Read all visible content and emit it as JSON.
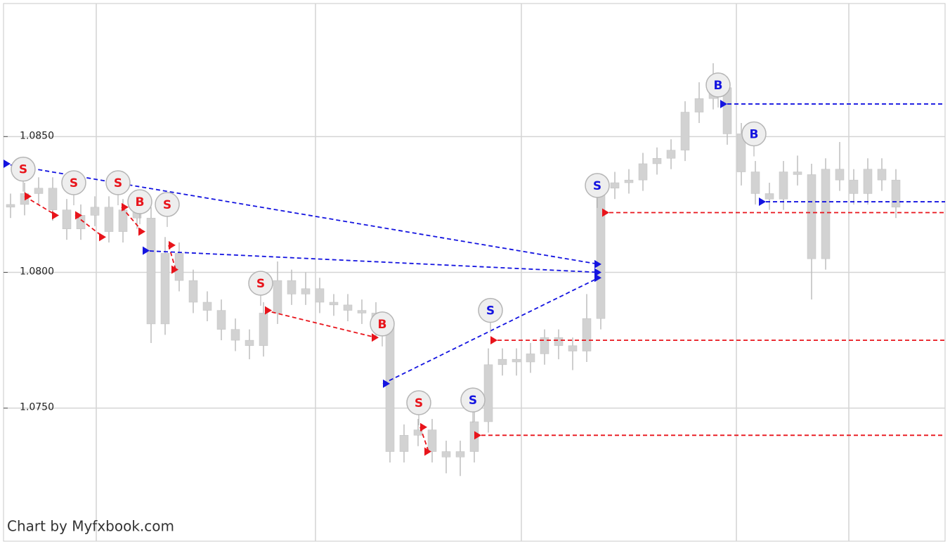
{
  "chart_data": {
    "type": "candlestick",
    "watermark": "Chart by Myfxbook.com",
    "xlim": [
      0,
      67
    ],
    "ylim": [
      1.0701,
      1.0899
    ],
    "yticks": [
      {
        "value": 1.085,
        "label": "1.0850"
      },
      {
        "value": 1.08,
        "label": "1.0800"
      },
      {
        "value": 1.075,
        "label": "1.0750"
      }
    ],
    "xgrid": [
      6.6,
      22.2,
      36.85,
      52.15,
      60.15
    ],
    "grid": true,
    "candle_color": "#d2d2d2",
    "open": [
      1.0824,
      1.0825,
      1.0829,
      1.0831,
      1.0823,
      1.0816,
      1.0821,
      1.0824,
      1.0815,
      1.0823,
      1.082,
      1.0781,
      1.0807,
      1.0797,
      1.0789,
      1.0786,
      1.0779,
      1.0775,
      1.0773,
      1.0785,
      1.0797,
      1.0792,
      1.0794,
      1.0789,
      1.0788,
      1.0786,
      1.0785,
      1.078,
      1.0734,
      1.074,
      1.0742,
      1.0734,
      1.0732,
      1.0734,
      1.0745,
      1.0766,
      1.0768,
      1.0767,
      1.077,
      1.0776,
      1.0773,
      1.0771,
      1.0783,
      1.0831,
      1.0833,
      1.0834,
      1.084,
      1.0842,
      1.0845,
      1.0859,
      1.0864,
      1.0868,
      1.0851,
      1.0837,
      1.0829,
      1.0827,
      1.0837,
      1.0836,
      1.0805,
      1.0838,
      1.0834,
      1.0829,
      1.0838,
      1.0834
    ],
    "high": [
      1.0829,
      1.0833,
      1.0835,
      1.0835,
      1.0827,
      1.0825,
      1.0828,
      1.0828,
      1.0827,
      1.0827,
      1.0824,
      1.0813,
      1.0811,
      1.0801,
      1.0793,
      1.079,
      1.0783,
      1.0779,
      1.0789,
      1.0804,
      1.0801,
      1.08,
      1.0798,
      1.0792,
      1.0792,
      1.079,
      1.0789,
      1.0784,
      1.0744,
      1.0746,
      1.0746,
      1.0738,
      1.0738,
      1.0749,
      1.0772,
      1.0772,
      1.0772,
      1.0774,
      1.0779,
      1.0779,
      1.0776,
      1.0792,
      1.0835,
      1.0837,
      1.0838,
      1.0844,
      1.0846,
      1.0849,
      1.0863,
      1.087,
      1.0877,
      1.0872,
      1.0855,
      1.0841,
      1.0833,
      1.0841,
      1.0843,
      1.084,
      1.0842,
      1.0848,
      1.0838,
      1.0842,
      1.0842,
      1.0838
    ],
    "low": [
      1.082,
      1.0821,
      1.0825,
      1.0819,
      1.0812,
      1.0812,
      1.0817,
      1.0811,
      1.0811,
      1.0816,
      1.0774,
      1.0777,
      1.0793,
      1.0785,
      1.0782,
      1.0775,
      1.0771,
      1.0768,
      1.0769,
      1.0781,
      1.0788,
      1.0788,
      1.0785,
      1.0784,
      1.0782,
      1.0781,
      1.0776,
      1.073,
      1.073,
      1.0736,
      1.073,
      1.0726,
      1.0725,
      1.073,
      1.0741,
      1.0762,
      1.0762,
      1.0763,
      1.0766,
      1.0768,
      1.0764,
      1.0767,
      1.0779,
      1.0827,
      1.0829,
      1.083,
      1.0836,
      1.0838,
      1.0841,
      1.0855,
      1.086,
      1.0847,
      1.0832,
      1.0825,
      1.0823,
      1.0823,
      1.0832,
      1.079,
      1.0801,
      1.083,
      1.0825,
      1.0825,
      1.083,
      1.082
    ],
    "close": [
      1.0825,
      1.0829,
      1.0831,
      1.0823,
      1.0816,
      1.0821,
      1.0824,
      1.0815,
      1.0823,
      1.082,
      1.0781,
      1.0807,
      1.0797,
      1.0789,
      1.0786,
      1.0779,
      1.0775,
      1.0773,
      1.0785,
      1.0797,
      1.0792,
      1.0794,
      1.0789,
      1.0788,
      1.0786,
      1.0785,
      1.078,
      1.0734,
      1.074,
      1.0742,
      1.0734,
      1.0732,
      1.0734,
      1.0745,
      1.0766,
      1.0768,
      1.0767,
      1.077,
      1.0776,
      1.0773,
      1.0771,
      1.0783,
      1.0831,
      1.0833,
      1.0834,
      1.084,
      1.0842,
      1.0845,
      1.0859,
      1.0864,
      1.0868,
      1.0851,
      1.0837,
      1.0829,
      1.0827,
      1.0837,
      1.0836,
      1.0805,
      1.0838,
      1.0834,
      1.0829,
      1.0838,
      1.0834,
      1.0824
    ],
    "lines": [
      {
        "color": "#e8141b",
        "from": [
          1.5,
          1.0828
        ],
        "to": [
          3.75,
          1.0821
        ]
      },
      {
        "color": "#e8141b",
        "from": [
          5.1,
          1.0821
        ],
        "to": [
          7.1,
          1.0813
        ]
      },
      {
        "color": "#e8141b",
        "from": [
          8.4,
          1.0824
        ],
        "to": [
          9.9,
          1.0815
        ]
      },
      {
        "color": "#e8141b",
        "from": [
          11.75,
          1.081
        ],
        "to": [
          12.25,
          1.0801
        ]
      },
      {
        "color": "#e8141b",
        "from": [
          18.6,
          1.0786
        ],
        "to": [
          26.5,
          1.0776
        ]
      },
      {
        "color": "#e8141b",
        "from": [
          29.65,
          1.0743
        ],
        "to": [
          30.25,
          1.0734
        ]
      },
      {
        "color": "#e8141b",
        "from": [
          33.5,
          1.074
        ],
        "to": [
          67,
          1.074
        ]
      },
      {
        "color": "#e8141b",
        "from": [
          34.65,
          1.0775
        ],
        "to": [
          67,
          1.0775
        ]
      },
      {
        "color": "#e8141b",
        "from": [
          42.6,
          1.0822
        ],
        "to": [
          67,
          1.0822
        ]
      },
      {
        "color": "#1414e0",
        "from": [
          0,
          1.084
        ],
        "to": [
          42.35,
          1.0803
        ]
      },
      {
        "color": "#1414e0",
        "from": [
          9.9,
          1.0808
        ],
        "to": [
          42.35,
          1.08
        ]
      },
      {
        "color": "#1414e0",
        "from": [
          27,
          1.0759
        ],
        "to": [
          42.35,
          1.0798
        ]
      },
      {
        "color": "#1414e0",
        "from": [
          51,
          1.0862
        ],
        "to": [
          67,
          1.0862
        ]
      },
      {
        "color": "#1414e0",
        "from": [
          53.75,
          1.0826
        ],
        "to": [
          67,
          1.0826
        ]
      }
    ],
    "markers": [
      {
        "label": "S",
        "color": "#e8141b",
        "x": 1.4,
        "price": 1.0838
      },
      {
        "label": "S",
        "color": "#e8141b",
        "x": 5,
        "price": 1.0833
      },
      {
        "label": "S",
        "color": "#e8141b",
        "x": 8.15,
        "price": 1.0833
      },
      {
        "label": "B",
        "color": "#e8141b",
        "x": 9.7,
        "price": 1.0826
      },
      {
        "label": "S",
        "color": "#e8141b",
        "x": 11.65,
        "price": 1.0825
      },
      {
        "label": "S",
        "color": "#e8141b",
        "x": 18.3,
        "price": 1.0796
      },
      {
        "label": "B",
        "color": "#e8141b",
        "x": 26.95,
        "price": 1.0781
      },
      {
        "label": "S",
        "color": "#e8141b",
        "x": 29.55,
        "price": 1.0752
      },
      {
        "label": "S",
        "color": "#1414e0",
        "x": 33.4,
        "price": 1.0753
      },
      {
        "label": "S",
        "color": "#1414e0",
        "x": 34.65,
        "price": 1.0786
      },
      {
        "label": "S",
        "color": "#1414e0",
        "x": 42.25,
        "price": 1.0832
      },
      {
        "label": "B",
        "color": "#1414e0",
        "x": 50.85,
        "price": 1.0869
      },
      {
        "label": "B",
        "color": "#1414e0",
        "x": 53.4,
        "price": 1.0851
      }
    ]
  }
}
